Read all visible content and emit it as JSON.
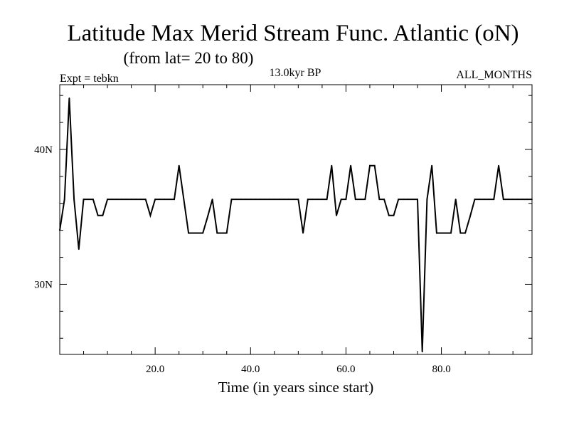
{
  "chart_data": {
    "type": "line",
    "title": "Latitude Max Merid Stream Func. Atlantic (oN)",
    "subtitle": "(from lat= 20 to 80)",
    "experiment": "Expt = tebkn",
    "period": "13.0kyr BP",
    "months": "ALL_MONTHS",
    "xlabel": "Time (in years since start)",
    "ylabel": "",
    "xlim": [
      0,
      99
    ],
    "ylim": [
      24.8,
      44.8
    ],
    "x_ticks": [
      20,
      40,
      60,
      80
    ],
    "x_tick_labels": [
      "20.0",
      "40.0",
      "60.0",
      "80.0"
    ],
    "y_ticks": [
      30,
      40
    ],
    "y_tick_labels": [
      "30N",
      "40N"
    ],
    "grid": false,
    "series": [
      {
        "name": "Latitude Max Merid Stream Func",
        "x": [
          0,
          1,
          2,
          3,
          4,
          5,
          6,
          7,
          8,
          9,
          10,
          11,
          12,
          13,
          14,
          15,
          16,
          17,
          18,
          19,
          20,
          21,
          22,
          23,
          24,
          25,
          26,
          27,
          28,
          29,
          30,
          31,
          32,
          33,
          34,
          35,
          36,
          37,
          38,
          39,
          40,
          41,
          42,
          43,
          44,
          45,
          46,
          47,
          48,
          49,
          50,
          51,
          52,
          53,
          54,
          55,
          56,
          57,
          58,
          59,
          60,
          61,
          62,
          63,
          64,
          65,
          66,
          67,
          68,
          69,
          70,
          71,
          72,
          73,
          74,
          75,
          76,
          77,
          78,
          79,
          80,
          81,
          82,
          83,
          84,
          85,
          86,
          87,
          88,
          89,
          90,
          91,
          92,
          93,
          94,
          95,
          96,
          97,
          98,
          99
        ],
        "values": [
          34.0,
          36.3,
          43.8,
          36.3,
          32.6,
          36.3,
          36.3,
          36.3,
          35.1,
          35.1,
          36.3,
          36.3,
          36.3,
          36.3,
          36.3,
          36.3,
          36.3,
          36.3,
          36.3,
          35.1,
          36.3,
          36.3,
          36.3,
          36.3,
          36.3,
          38.8,
          36.3,
          33.8,
          33.8,
          33.8,
          33.8,
          35.0,
          36.3,
          33.8,
          33.8,
          33.8,
          36.3,
          36.3,
          36.3,
          36.3,
          36.3,
          36.3,
          36.3,
          36.3,
          36.3,
          36.3,
          36.3,
          36.3,
          36.3,
          36.3,
          36.3,
          33.8,
          36.3,
          36.3,
          36.3,
          36.3,
          36.3,
          38.8,
          35.1,
          36.3,
          36.3,
          38.8,
          36.3,
          36.3,
          36.3,
          38.8,
          38.8,
          36.3,
          36.3,
          35.1,
          35.1,
          36.3,
          36.3,
          36.3,
          36.3,
          36.3,
          25.0,
          36.3,
          38.8,
          33.8,
          33.8,
          33.8,
          33.8,
          36.3,
          33.8,
          33.8,
          35.0,
          36.3,
          36.3,
          36.3,
          36.3,
          36.3,
          38.8,
          36.3,
          36.3,
          36.3,
          36.3,
          36.3,
          36.3,
          36.3
        ]
      }
    ]
  }
}
